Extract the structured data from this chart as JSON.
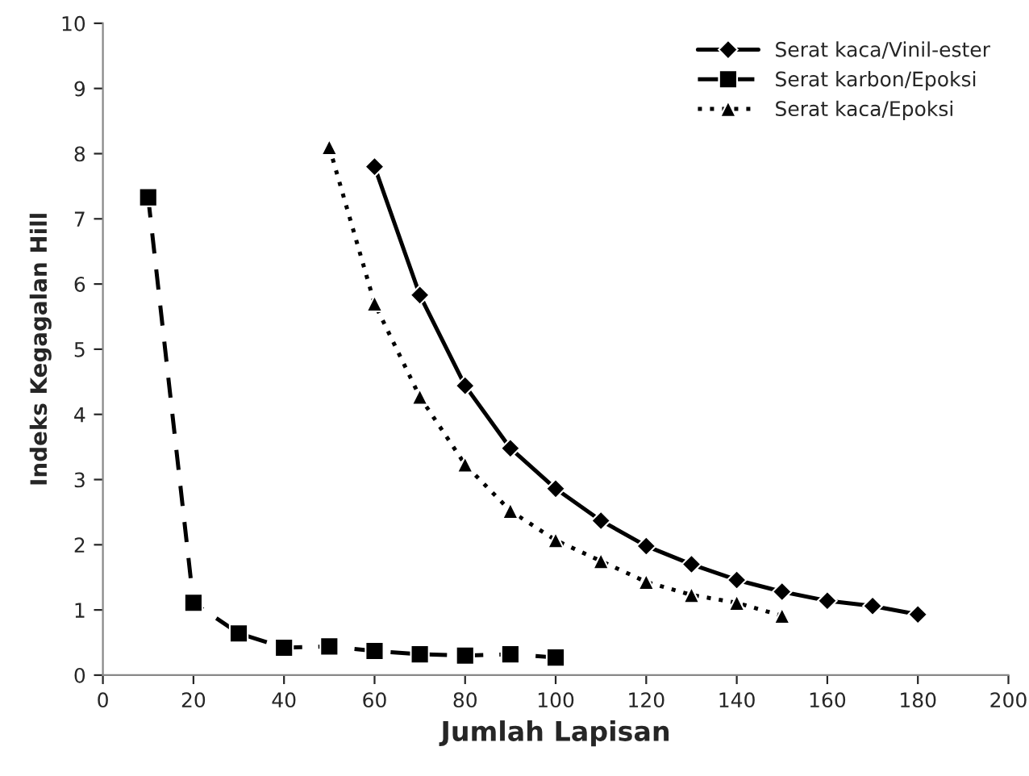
{
  "chart_data": {
    "type": "line",
    "xlabel": "Jumlah Lapisan",
    "ylabel": "Indeks Kegagalan Hill",
    "xlim": [
      0,
      200
    ],
    "xticks": [
      0,
      20,
      40,
      60,
      80,
      100,
      120,
      140,
      160,
      180,
      200
    ],
    "ylim": [
      0,
      10
    ],
    "yticks": [
      0,
      1,
      2,
      3,
      4,
      5,
      6,
      7,
      8,
      9,
      10
    ],
    "grid": false,
    "legend": "top right",
    "series": [
      {
        "name": "Serat kaca/Vinil-ester",
        "color": "#000000",
        "marker": "diamond",
        "line_style": "solid",
        "x": [
          60,
          70,
          80,
          90,
          100,
          110,
          120,
          130,
          140,
          150,
          160,
          170,
          180
        ],
        "values": [
          7.8,
          5.83,
          4.44,
          3.48,
          2.86,
          2.37,
          1.98,
          1.7,
          1.46,
          1.28,
          1.14,
          1.06,
          0.93
        ]
      },
      {
        "name": "Serat karbon/Epoksi",
        "color": "#000000",
        "marker": "square",
        "line_style": "dashed",
        "x": [
          10,
          20,
          30,
          40,
          50,
          60,
          70,
          80,
          90,
          100
        ],
        "values": [
          7.33,
          1.11,
          0.64,
          0.42,
          0.44,
          0.37,
          0.32,
          0.3,
          0.32,
          0.27
        ]
      },
      {
        "name": "Serat kaca/Epoksi",
        "color": "#000000",
        "marker": "triangle",
        "line_style": "dotted",
        "x": [
          50,
          60,
          70,
          80,
          90,
          100,
          110,
          120,
          130,
          140,
          150
        ],
        "values": [
          8.1,
          5.7,
          4.27,
          3.23,
          2.52,
          2.07,
          1.75,
          1.43,
          1.23,
          1.11,
          0.91
        ]
      }
    ]
  }
}
